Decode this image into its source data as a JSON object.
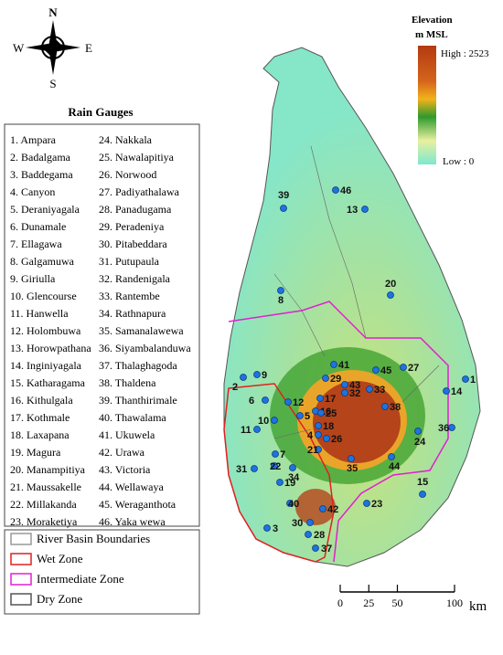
{
  "compass": {
    "north": "N",
    "south": "S",
    "east": "E",
    "west": "W"
  },
  "elevation_legend": {
    "title": "Elevation",
    "unit": "m MSL",
    "high": "High : 2523",
    "low": "Low : 0"
  },
  "rain_gauges": {
    "title": "Rain Gauges",
    "items": [
      "1. Ampara",
      "2. Badalgama",
      "3. Baddegama",
      "4. Canyon",
      "5. Deraniyagala",
      "6. Dunamale",
      "7. Ellagawa",
      "8. Galgamuwa",
      "9. Giriulla",
      "10. Glencourse",
      "11. Hanwella",
      "12. Holombuwa",
      "13. Horowpathana",
      "14. Inginiyagala",
      "15. Katharagama",
      "16. Kithulgala",
      "17. Kothmale",
      "18. Laxapana",
      "19. Magura",
      "20. Manampitiya",
      "21. Maussakelle",
      "22. Millakanda",
      "23. Moraketiya",
      "24. Nakkala",
      "25. Nawalapitiya",
      "26. Norwood",
      "27. Padiyathalawa",
      "28. Panadugama",
      "29. Peradeniya",
      "30. Pitabeddara",
      "31. Putupaula",
      "32. Randenigala",
      "33. Rantembe",
      "34. Rathnapura",
      "35. Samanalawewa",
      "36. Siyambalanduwa",
      "37. Thalaghagoda",
      "38. Thaldena",
      "39. Thanthirimale",
      "40. Thawalama",
      "41. Ukuwela",
      "42. Urawa",
      "43. Victoria",
      "44. Wellawaya",
      "45. Weraganthota",
      "46. Yaka wewa"
    ]
  },
  "map_labels": [
    "1",
    "2",
    "3",
    "4",
    "5",
    "6",
    "7",
    "8",
    "9",
    "10",
    "11",
    "12",
    "13",
    "14",
    "15",
    "16",
    "17",
    "18",
    "19",
    "20",
    "21",
    "22",
    "23",
    "24",
    "25",
    "26",
    "27",
    "28",
    "29",
    "30",
    "31",
    "32",
    "33",
    "34",
    "35",
    "36",
    "37",
    "38",
    "39",
    "40",
    "41",
    "42",
    "43",
    "44",
    "45",
    "46"
  ],
  "zone_legend": [
    "River Basin Boundaries",
    "Wet Zone",
    "Intermediate Zone",
    "Dry Zone"
  ],
  "scale_bar": {
    "ticks": [
      0,
      25,
      50,
      100
    ],
    "unit": "km"
  }
}
